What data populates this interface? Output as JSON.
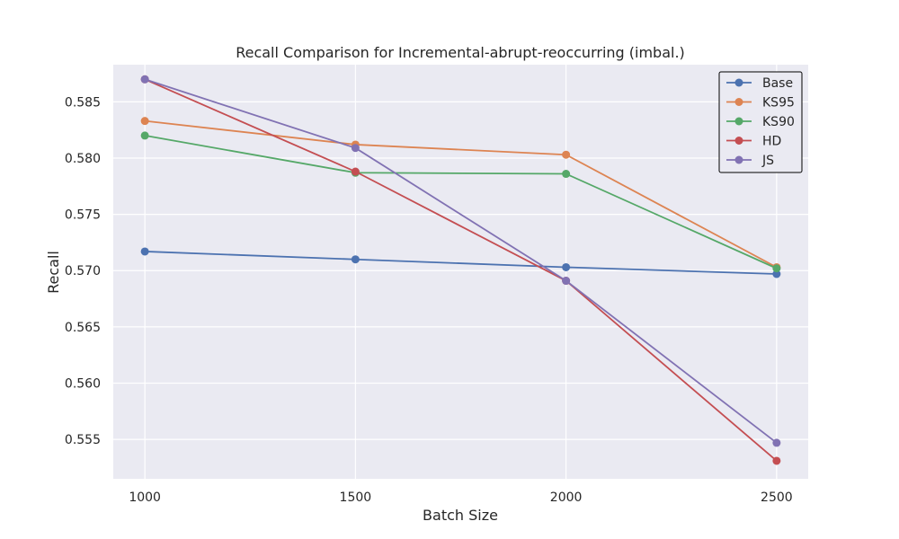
{
  "chart_data": {
    "type": "line",
    "title": "Recall Comparison for Incremental-abrupt-reoccurring (imbal.)",
    "xlabel": "Batch Size",
    "ylabel": "Recall",
    "x": [
      1000,
      1500,
      2000,
      2500
    ],
    "x_tick_labels": [
      "1000",
      "1500",
      "2000",
      "2500"
    ],
    "xlim": [
      925,
      2575
    ],
    "ylim": [
      0.5515,
      0.5883
    ],
    "y_ticks": [
      0.555,
      0.56,
      0.565,
      0.57,
      0.575,
      0.58,
      0.585
    ],
    "y_tick_labels": [
      "0.555",
      "0.560",
      "0.565",
      "0.570",
      "0.575",
      "0.580",
      "0.585"
    ],
    "grid": true,
    "legend_position": "top-right",
    "series": [
      {
        "name": "Base",
        "color": "#4c72b0",
        "values": [
          0.5717,
          0.571,
          0.5703,
          0.5697
        ]
      },
      {
        "name": "KS95",
        "color": "#dd8452",
        "values": [
          0.5833,
          0.5812,
          0.5803,
          0.5703
        ]
      },
      {
        "name": "KS90",
        "color": "#55a868",
        "values": [
          0.582,
          0.5787,
          0.5786,
          0.5702
        ]
      },
      {
        "name": "HD",
        "color": "#c44e52",
        "values": [
          0.587,
          0.5788,
          0.5691,
          0.5531
        ]
      },
      {
        "name": "JS",
        "color": "#8172b3",
        "values": [
          0.587,
          0.5809,
          0.5691,
          0.5547
        ]
      }
    ]
  }
}
